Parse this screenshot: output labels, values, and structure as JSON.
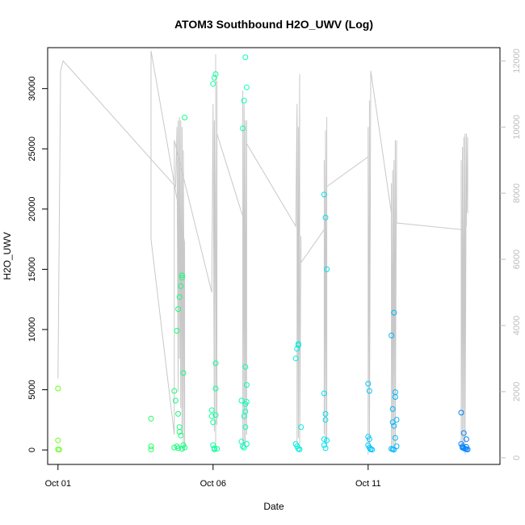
{
  "chart_data": {
    "type": "scatter",
    "title": "ATOM3 Southbound H2O_UWV (Log)",
    "xlabel": "Date",
    "ylabel": "H2O_UWV",
    "x_axis": {
      "type": "date",
      "range": [
        "2016-09-30T16:00",
        "2016-10-15T06:00"
      ],
      "ticks": [
        {
          "value": "2016-10-01",
          "label": "Oct 01"
        },
        {
          "value": "2016-10-06",
          "label": "Oct 06"
        },
        {
          "value": "2016-10-11",
          "label": "Oct 11"
        }
      ]
    },
    "y_axis": {
      "range": [
        -1200,
        33400
      ],
      "ticks": [
        0,
        5000,
        10000,
        15000,
        20000,
        25000,
        30000
      ]
    },
    "y2_axis": {
      "color": "#bdbdbd",
      "range": [
        -200,
        12400
      ],
      "ticks": [
        0,
        2000,
        4000,
        6000,
        8000,
        10000,
        12000
      ]
    },
    "grid": false,
    "legend": "none",
    "point_color_gradient": [
      "#66ff1a",
      "#19ff66",
      "#00ffcc",
      "#00ccff",
      "#0080ff"
    ],
    "series": [
      {
        "kind": "points",
        "points": [
          [
            "2016-10-01T00:00",
            5100
          ],
          [
            "2016-10-01T00:00",
            800
          ],
          [
            "2016-10-01T00:00",
            50
          ],
          [
            "2016-10-01T01:00",
            30
          ],
          [
            "2016-10-04T00:00",
            2600
          ],
          [
            "2016-10-04T00:00",
            300
          ],
          [
            "2016-10-04T00:00",
            50
          ],
          [
            "2016-10-04T18:00",
            4900
          ],
          [
            "2016-10-04T19:00",
            4100
          ],
          [
            "2016-10-04T18:00",
            200
          ],
          [
            "2016-10-04T20:00",
            9900
          ],
          [
            "2016-10-04T21:00",
            11700
          ],
          [
            "2016-10-04T22:00",
            12700
          ],
          [
            "2016-10-04T23:00",
            13600
          ],
          [
            "2016-10-05T00:00",
            14300
          ],
          [
            "2016-10-05T00:00",
            14500
          ],
          [
            "2016-10-04T21:00",
            3000
          ],
          [
            "2016-10-04T22:00",
            1900
          ],
          [
            "2016-10-04T22:00",
            1500
          ],
          [
            "2016-10-04T23:00",
            1200
          ],
          [
            "2016-10-04T20:00",
            300
          ],
          [
            "2016-10-04T21:00",
            150
          ],
          [
            "2016-10-05T01:00",
            400
          ],
          [
            "2016-10-05T01:00",
            6400
          ],
          [
            "2016-10-05T02:00",
            27600
          ],
          [
            "2016-10-05T02:00",
            200
          ],
          [
            "2016-10-05T00:00",
            100
          ],
          [
            "2016-10-05T23:00",
            3300
          ],
          [
            "2016-10-05T23:00",
            2800
          ],
          [
            "2016-10-06T00:00",
            2300
          ],
          [
            "2016-10-06T00:00",
            400
          ],
          [
            "2016-10-06T01:00",
            150
          ],
          [
            "2016-10-06T01:00",
            50
          ],
          [
            "2016-10-06T02:00",
            7200
          ],
          [
            "2016-10-06T02:00",
            5100
          ],
          [
            "2016-10-06T03:00",
            100
          ],
          [
            "2016-10-06T02:00",
            2900
          ],
          [
            "2016-10-06T00:00",
            30400
          ],
          [
            "2016-10-06T01:00",
            30900
          ],
          [
            "2016-10-06T02:00",
            31200
          ],
          [
            "2016-10-06T22:00",
            4100
          ],
          [
            "2016-10-06T22:00",
            700
          ],
          [
            "2016-10-06T23:00",
            300
          ],
          [
            "2016-10-06T23:00",
            26700
          ],
          [
            "2016-10-07T00:00",
            29000
          ],
          [
            "2016-10-07T01:00",
            32600
          ],
          [
            "2016-10-07T02:00",
            30100
          ],
          [
            "2016-10-07T01:00",
            6900
          ],
          [
            "2016-10-07T02:00",
            5400
          ],
          [
            "2016-10-07T01:00",
            3800
          ],
          [
            "2016-10-07T01:00",
            3200
          ],
          [
            "2016-10-07T00:00",
            2800
          ],
          [
            "2016-10-07T01:00",
            1900
          ],
          [
            "2016-10-07T02:00",
            4000
          ],
          [
            "2016-10-07T02:00",
            500
          ],
          [
            "2016-10-07T00:00",
            200
          ],
          [
            "2016-10-08T16:00",
            7600
          ],
          [
            "2016-10-08T17:00",
            8400
          ],
          [
            "2016-10-08T18:00",
            8700
          ],
          [
            "2016-10-08T18:00",
            8800
          ],
          [
            "2016-10-08T16:00",
            500
          ],
          [
            "2016-10-08T17:00",
            300
          ],
          [
            "2016-10-08T18:00",
            100
          ],
          [
            "2016-10-08T19:00",
            50
          ],
          [
            "2016-10-08T20:00",
            1900
          ],
          [
            "2016-10-09T14:00",
            21200
          ],
          [
            "2016-10-09T15:00",
            19300
          ],
          [
            "2016-10-09T16:00",
            15000
          ],
          [
            "2016-10-09T14:00",
            4700
          ],
          [
            "2016-10-09T15:00",
            3000
          ],
          [
            "2016-10-09T15:00",
            2500
          ],
          [
            "2016-10-09T14:00",
            900
          ],
          [
            "2016-10-09T16:00",
            800
          ],
          [
            "2016-10-09T14:00",
            400
          ],
          [
            "2016-10-09T15:00",
            150
          ],
          [
            "2016-10-11T00:00",
            5500
          ],
          [
            "2016-10-11T01:00",
            4900
          ],
          [
            "2016-10-11T00:00",
            1100
          ],
          [
            "2016-10-11T01:00",
            900
          ],
          [
            "2016-10-11T00:00",
            400
          ],
          [
            "2016-10-11T01:00",
            200
          ],
          [
            "2016-10-11T02:00",
            100
          ],
          [
            "2016-10-11T02:00",
            50
          ],
          [
            "2016-10-11T03:00",
            30
          ],
          [
            "2016-10-11T18:00",
            9500
          ],
          [
            "2016-10-11T20:00",
            11400
          ],
          [
            "2016-10-11T19:00",
            3400
          ],
          [
            "2016-10-11T21:00",
            4800
          ],
          [
            "2016-10-11T21:00",
            4400
          ],
          [
            "2016-10-11T19:00",
            2300
          ],
          [
            "2016-10-11T20:00",
            2000
          ],
          [
            "2016-10-11T22:00",
            2500
          ],
          [
            "2016-10-11T21:00",
            1000
          ],
          [
            "2016-10-11T18:00",
            100
          ],
          [
            "2016-10-11T19:00",
            50
          ],
          [
            "2016-10-11T20:00",
            30
          ],
          [
            "2016-10-11T22:00",
            300
          ],
          [
            "2016-10-14T00:00",
            3100
          ],
          [
            "2016-10-14T02:00",
            1400
          ],
          [
            "2016-10-14T04:00",
            900
          ],
          [
            "2016-10-14T00:00",
            500
          ],
          [
            "2016-10-14T01:00",
            300
          ],
          [
            "2016-10-14T02:00",
            150
          ],
          [
            "2016-10-14T03:00",
            100
          ],
          [
            "2016-10-14T04:00",
            60
          ],
          [
            "2016-10-14T05:00",
            40
          ],
          [
            "2016-10-14T01:00",
            200
          ],
          [
            "2016-10-14T04:00",
            250
          ]
        ]
      },
      {
        "kind": "line",
        "axis": "y2",
        "color": "#c8c8c8",
        "points": [
          [
            "2016-10-01T00:00",
            2400
          ],
          [
            "2016-10-01T02:00",
            11700
          ],
          [
            "2016-10-01T04:00",
            12000
          ],
          [
            "2016-10-04T19:00",
            8200
          ],
          [
            "2016-10-04T20:00",
            9900
          ],
          [
            "2016-10-04T20:00",
            10000
          ],
          [
            "2016-10-04T21:00",
            2000
          ],
          [
            "2016-10-04T21:00",
            10200
          ],
          [
            "2016-10-04T22:00",
            3000
          ],
          [
            "2016-10-04T22:00",
            10300
          ],
          [
            "2016-10-04T23:00",
            1500
          ],
          [
            "2016-10-04T23:00",
            10200
          ],
          [
            "2016-10-05T00:00",
            700
          ],
          [
            "2016-10-05T00:00",
            10000
          ],
          [
            "2016-10-05T01:00",
            200
          ],
          [
            "2016-10-05T01:00",
            9300
          ],
          [
            "2016-10-05T02:00",
            300
          ],
          [
            "2016-10-05T02:00",
            6500
          ],
          [
            "2016-10-04T00:00",
            12300
          ],
          [
            "2016-10-04T00:00",
            6600
          ],
          [
            "2016-10-04T18:00",
            700
          ],
          [
            "2016-10-04T18:00",
            9600
          ],
          [
            "2016-10-05T23:00",
            5000
          ],
          [
            "2016-10-06T00:00",
            10700
          ],
          [
            "2016-10-06T00:00",
            8600
          ],
          [
            "2016-10-06T00:00",
            10600
          ],
          [
            "2016-10-06T01:00",
            800
          ],
          [
            "2016-10-06T01:00",
            10200
          ],
          [
            "2016-10-06T02:00",
            4000
          ],
          [
            "2016-10-06T02:00",
            12200
          ],
          [
            "2016-10-06T02:00",
            200
          ],
          [
            "2016-10-06T03:00",
            9700
          ],
          [
            "2016-10-06T03:00",
            1000
          ],
          [
            "2016-10-06T03:00",
            11400
          ],
          [
            "2016-10-06T03:00",
            9800
          ],
          [
            "2016-10-06T23:00",
            7300
          ],
          [
            "2016-10-06T23:00",
            300
          ],
          [
            "2016-10-06T23:00",
            11100
          ],
          [
            "2016-10-07T00:00",
            400
          ],
          [
            "2016-10-07T00:00",
            10700
          ],
          [
            "2016-10-07T01:00",
            300
          ],
          [
            "2016-10-07T01:00",
            10200
          ],
          [
            "2016-10-07T02:00",
            700
          ],
          [
            "2016-10-07T02:00",
            10200
          ],
          [
            "2016-10-07T02:00",
            9500
          ],
          [
            "2016-10-08T16:00",
            7000
          ],
          [
            "2016-10-08T17:00",
            10700
          ],
          [
            "2016-10-08T17:00",
            400
          ],
          [
            "2016-10-08T17:00",
            10600
          ],
          [
            "2016-10-08T18:00",
            600
          ],
          [
            "2016-10-08T18:00",
            10000
          ],
          [
            "2016-10-08T18:00",
            900
          ],
          [
            "2016-10-08T19:00",
            11600
          ],
          [
            "2016-10-08T19:00",
            7100
          ],
          [
            "2016-10-08T19:00",
            200
          ],
          [
            "2016-10-08T20:00",
            6700
          ],
          [
            "2016-10-08T20:00",
            5900
          ],
          [
            "2016-10-09T14:00",
            6900
          ],
          [
            "2016-10-09T14:00",
            9000
          ],
          [
            "2016-10-09T14:00",
            700
          ],
          [
            "2016-10-09T15:00",
            9300
          ],
          [
            "2016-10-09T15:00",
            400
          ],
          [
            "2016-10-09T15:00",
            9900
          ],
          [
            "2016-10-09T16:00",
            400
          ],
          [
            "2016-10-09T16:00",
            10300
          ],
          [
            "2016-10-09T16:00",
            5200
          ],
          [
            "2016-10-09T16:00",
            8200
          ],
          [
            "2016-10-11T00:00",
            9100
          ],
          [
            "2016-10-11T00:00",
            9900
          ],
          [
            "2016-10-11T00:00",
            100
          ],
          [
            "2016-10-11T00:00",
            10000
          ],
          [
            "2016-10-11T01:00",
            500
          ],
          [
            "2016-10-11T01:00",
            10800
          ],
          [
            "2016-10-11T01:00",
            200
          ],
          [
            "2016-10-11T02:00",
            11400
          ],
          [
            "2016-10-11T02:00",
            11700
          ],
          [
            "2016-10-11T18:00",
            7400
          ],
          [
            "2016-10-11T18:00",
            8300
          ],
          [
            "2016-10-11T18:00",
            200
          ],
          [
            "2016-10-11T19:00",
            8700
          ],
          [
            "2016-10-11T19:00",
            300
          ],
          [
            "2016-10-11T20:00",
            9000
          ],
          [
            "2016-10-11T20:00",
            200
          ],
          [
            "2016-10-11T21:00",
            9600
          ],
          [
            "2016-10-11T21:00",
            300
          ],
          [
            "2016-10-11T22:00",
            9600
          ],
          [
            "2016-10-11T22:00",
            7100
          ],
          [
            "2016-10-14T00:00",
            6900
          ],
          [
            "2016-10-14T00:00",
            9000
          ],
          [
            "2016-10-14T00:00",
            400
          ],
          [
            "2016-10-14T01:00",
            9400
          ],
          [
            "2016-10-14T01:00",
            300
          ],
          [
            "2016-10-14T02:00",
            9700
          ],
          [
            "2016-10-14T02:00",
            200
          ],
          [
            "2016-10-14T03:00",
            9800
          ],
          [
            "2016-10-14T03:00",
            100
          ],
          [
            "2016-10-14T04:00",
            9800
          ],
          [
            "2016-10-14T04:00",
            7000
          ],
          [
            "2016-10-14T05:00",
            9700
          ],
          [
            "2016-10-14T05:00",
            7400
          ]
        ]
      }
    ]
  }
}
